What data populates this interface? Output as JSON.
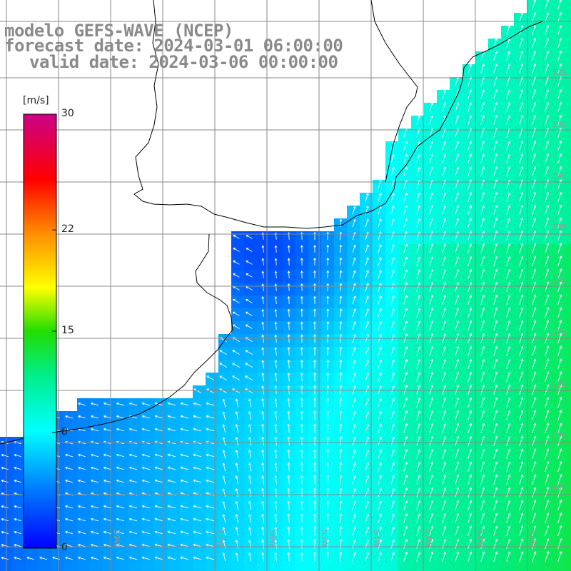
{
  "title": {
    "line1": "modelo GEFS-WAVE (NCEP)",
    "line2": "forecast date: 2024-03-01 06:00:00",
    "line3": "valid date: 2024-03-06 00:00:00"
  },
  "colorbar": {
    "unit": "[m/s]",
    "min": 0,
    "max": 30,
    "ticks": [
      {
        "value": 30,
        "label": "30"
      },
      {
        "value": 22,
        "label": "22"
      },
      {
        "value": 15,
        "label": "15"
      },
      {
        "value": 8,
        "label": "8"
      },
      {
        "value": 0,
        "label": "0"
      }
    ],
    "colors": [
      "#0000ff",
      "#00aaff",
      "#00ffff",
      "#00ee00",
      "#ffff00",
      "#ff8800",
      "#ff0000",
      "#cc0088"
    ]
  },
  "grid": {
    "lat_labels": [
      "32S",
      "33S",
      "34S",
      "35S",
      "36S",
      "37S",
      "38S",
      "39S",
      "40S"
    ],
    "lon_labels": [
      "59W",
      "57W",
      "56W",
      "55W",
      "54W",
      "53W",
      "52W",
      "51W"
    ]
  },
  "map_data": {
    "field": "wind speed",
    "units": "m/s",
    "lon_range": [
      -60.5,
      -49.5
    ],
    "lat_range": [
      -40.5,
      -30.0
    ],
    "land_color": "#ffffff",
    "coast_color": "#000000",
    "gridline_color": "#888888"
  }
}
